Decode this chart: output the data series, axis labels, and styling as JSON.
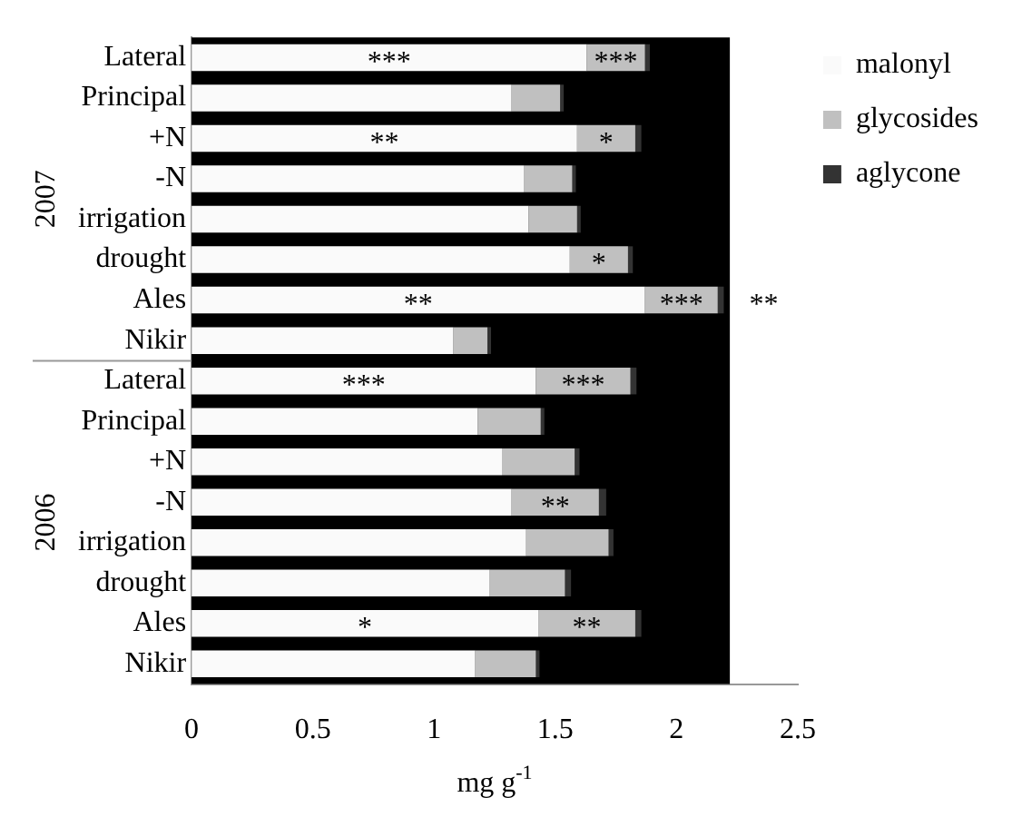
{
  "chart_data": {
    "type": "bar",
    "orientation": "horizontal",
    "stacked": true,
    "xlabel": "mg g$^{-1}$",
    "categories": [
      "Lateral",
      "Principal",
      "+N",
      "-N",
      "irrigation",
      "drought",
      "Ales",
      "Nikir",
      "Lateral",
      "Principal",
      "+N",
      "-N",
      "irrigation",
      "drought",
      "Ales",
      "Nikir"
    ],
    "series": [
      {
        "name": "malonyl",
        "color": "#fafafa",
        "values": [
          1.63,
          1.32,
          1.59,
          1.37,
          1.39,
          1.56,
          1.87,
          1.08,
          1.42,
          1.18,
          1.28,
          1.32,
          1.38,
          1.23,
          1.43,
          1.17
        ],
        "value_labels": [
          "***",
          null,
          "**",
          null,
          null,
          null,
          "**",
          null,
          "***",
          null,
          null,
          null,
          null,
          null,
          "*",
          null
        ]
      },
      {
        "name": "glycosides",
        "color": "#c0c0c0",
        "values": [
          0.24,
          0.2,
          0.24,
          0.2,
          0.2,
          0.24,
          0.3,
          0.14,
          0.39,
          0.26,
          0.3,
          0.36,
          0.34,
          0.31,
          0.4,
          0.25
        ],
        "value_labels": [
          "***",
          null,
          "*",
          null,
          null,
          "*",
          "***",
          null,
          "***",
          null,
          null,
          "**",
          null,
          null,
          "**",
          null
        ]
      },
      {
        "name": "aglycone",
        "color": "#333333",
        "values": [
          0.02,
          0.015,
          0.025,
          0.015,
          0.015,
          0.02,
          0.025,
          0.015,
          0.025,
          0.015,
          0.02,
          0.03,
          0.02,
          0.025,
          0.025,
          0.015
        ],
        "value_labels": [
          null,
          null,
          null,
          null,
          null,
          null,
          "**",
          null,
          null,
          null,
          null,
          null,
          null,
          null,
          null,
          null
        ]
      }
    ],
    "xlim": [
      0,
      2.5
    ],
    "xticks": [
      0,
      0.5,
      1,
      1.5,
      2,
      2.5
    ],
    "grid": false,
    "legend": "top right",
    "bands": [
      {
        "axis": "x",
        "from": 0,
        "to": 2.22,
        "color": "#000000"
      }
    ],
    "annotations": [
      "2007",
      "2006"
    ]
  }
}
